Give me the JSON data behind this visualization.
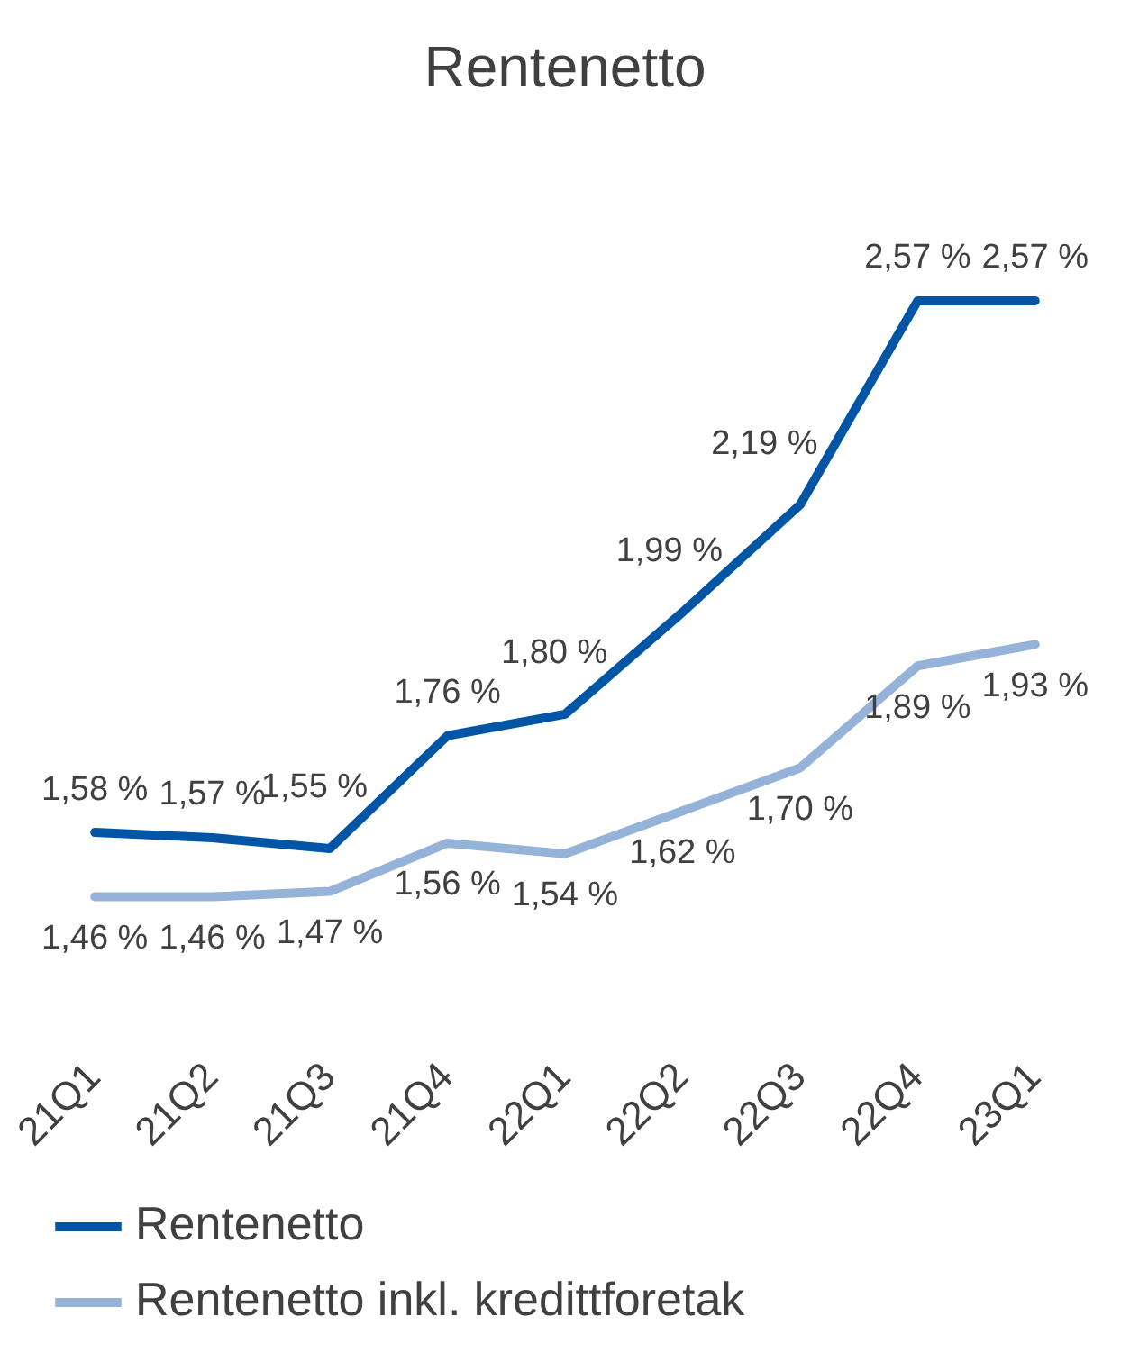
{
  "chart_data": {
    "type": "line",
    "title": "Rentenetto",
    "categories": [
      "21Q1",
      "21Q2",
      "21Q3",
      "21Q4",
      "22Q1",
      "22Q2",
      "22Q3",
      "22Q4",
      "23Q1"
    ],
    "series": [
      {
        "name": "Rentenetto",
        "color": "#0056a4",
        "values": [
          1.58,
          1.57,
          1.55,
          1.76,
          1.8,
          1.99,
          2.19,
          2.57,
          2.57
        ],
        "value_labels": [
          "1,58 %",
          "1,57 %",
          "1,55 %",
          "1,76 %",
          "1,80 %",
          "1,99 %",
          "2,19 %",
          "2,57 %",
          "2,57 %"
        ]
      },
      {
        "name": "Rentenetto inkl. kredittforetak",
        "color": "#95b3d9",
        "values": [
          1.46,
          1.46,
          1.47,
          1.56,
          1.54,
          1.62,
          1.7,
          1.89,
          1.93
        ],
        "value_labels": [
          "1,46 %",
          "1,46 %",
          "1,47 %",
          "1,56 %",
          "1,54 %",
          "1,62 %",
          "1,70 %",
          "1,89 %",
          "1,93 %"
        ]
      }
    ],
    "marker": "none",
    "grid": false,
    "legend": "bottom"
  }
}
